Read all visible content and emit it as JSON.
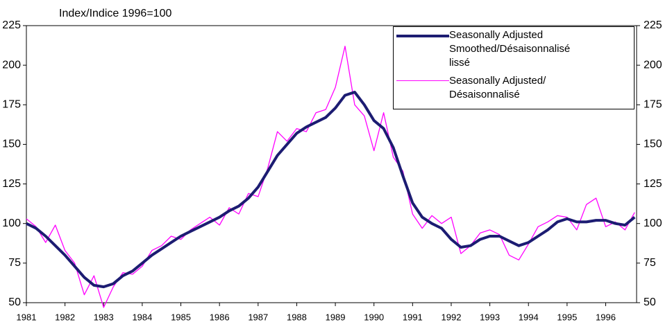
{
  "chart_data": {
    "type": "line",
    "y_label": "Index/Indice 1996=100",
    "x": [
      1981,
      1981.25,
      1981.5,
      1981.75,
      1982,
      1982.25,
      1982.5,
      1982.75,
      1983,
      1983.25,
      1983.5,
      1983.75,
      1984,
      1984.25,
      1984.5,
      1984.75,
      1985,
      1985.25,
      1985.5,
      1985.75,
      1986,
      1986.25,
      1986.5,
      1986.75,
      1987,
      1987.25,
      1987.5,
      1987.75,
      1988,
      1988.25,
      1988.5,
      1988.75,
      1989,
      1989.25,
      1989.5,
      1989.75,
      1990,
      1990.25,
      1990.5,
      1990.75,
      1991,
      1991.25,
      1991.5,
      1991.75,
      1992,
      1992.25,
      1992.5,
      1992.75,
      1993,
      1993.25,
      1993.5,
      1993.75,
      1994,
      1994.25,
      1994.5,
      1994.75,
      1995,
      1995.25,
      1995.5,
      1995.75,
      1996,
      1996.25,
      1996.5,
      1996.75
    ],
    "series": [
      {
        "name": "Seasonally Adjusted Smoothed/Désaisonnalisé lissé",
        "color": "#1c1c72",
        "width": 4,
        "values": [
          100,
          97,
          92,
          86,
          80,
          73,
          66,
          61,
          60,
          62,
          67,
          70,
          75,
          80,
          84,
          88,
          92,
          95,
          98,
          101,
          104,
          108,
          111,
          116,
          123,
          133,
          143,
          150,
          157,
          161,
          164,
          167,
          173,
          181,
          183,
          175,
          165,
          160,
          148,
          130,
          113,
          104,
          100,
          97,
          90,
          85,
          86,
          90,
          92,
          92,
          89,
          86,
          88,
          92,
          96,
          101,
          103,
          101,
          101,
          102,
          102,
          100,
          99,
          104
        ]
      },
      {
        "name": "Seasonally Adjusted/ Désaisonnalisé",
        "color": "#ff00ff",
        "width": 1.3,
        "values": [
          103,
          98,
          88,
          99,
          83,
          75,
          55,
          67,
          47,
          60,
          69,
          68,
          73,
          83,
          86,
          92,
          90,
          96,
          100,
          104,
          99,
          110,
          106,
          119,
          117,
          135,
          158,
          152,
          160,
          158,
          170,
          172,
          186,
          212,
          175,
          168,
          146,
          170,
          142,
          133,
          106,
          97,
          105,
          100,
          104,
          81,
          86,
          94,
          96,
          93,
          80,
          77,
          87,
          98,
          101,
          105,
          104,
          96,
          112,
          116,
          98,
          101,
          96,
          107
        ]
      }
    ],
    "xlim": [
      1981,
      1996.8
    ],
    "xticks": [
      1981,
      1982,
      1983,
      1984,
      1985,
      1986,
      1987,
      1988,
      1989,
      1990,
      1991,
      1992,
      1993,
      1994,
      1995,
      1996
    ],
    "ylim": [
      50,
      225
    ],
    "yticks": [
      50,
      75,
      100,
      125,
      150,
      175,
      200,
      225
    ],
    "right_axis": true,
    "grid": false,
    "legend": "upper right"
  }
}
